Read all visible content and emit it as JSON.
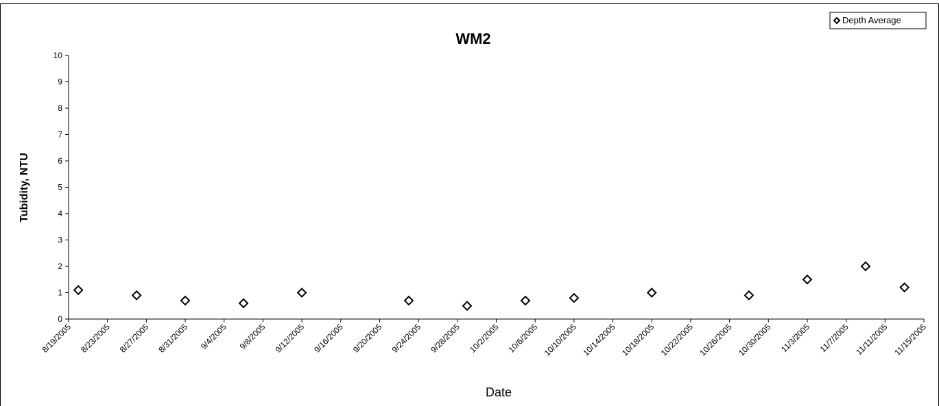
{
  "chart_data": {
    "type": "scatter",
    "title": "WM2",
    "x_label": "Date",
    "y_label": "Tubidity, NTU",
    "series": [
      {
        "name": "Depth Average",
        "color": "#000000",
        "x": [
          "2005-08-20",
          "2005-08-26",
          "2005-08-31",
          "2005-09-06",
          "2005-09-12",
          "2005-09-23",
          "2005-09-29",
          "2005-10-05",
          "2005-10-10",
          "2005-10-18",
          "2005-10-28",
          "2005-11-03",
          "2005-11-09",
          "2005-11-13"
        ],
        "values": [
          1.1,
          0.9,
          0.7,
          0.6,
          1.0,
          0.7,
          0.5,
          0.7,
          0.8,
          1.0,
          0.9,
          1.5,
          2.0,
          1.2
        ]
      }
    ],
    "xlim": [
      "2005-08-19",
      "2005-11-15"
    ],
    "xticks": [
      {
        "value": "2005-08-19",
        "label": "8/19/2005"
      },
      {
        "value": "2005-08-23",
        "label": "8/23/2005"
      },
      {
        "value": "2005-08-27",
        "label": "8/27/2005"
      },
      {
        "value": "2005-08-31",
        "label": "8/31/2005"
      },
      {
        "value": "2005-09-04",
        "label": "9/4/2005"
      },
      {
        "value": "2005-09-08",
        "label": "9/8/2005"
      },
      {
        "value": "2005-09-12",
        "label": "9/12/2005"
      },
      {
        "value": "2005-09-16",
        "label": "9/16/2005"
      },
      {
        "value": "2005-09-20",
        "label": "9/20/2005"
      },
      {
        "value": "2005-09-24",
        "label": "9/24/2005"
      },
      {
        "value": "2005-09-28",
        "label": "9/28/2005"
      },
      {
        "value": "2005-10-02",
        "label": "10/2/2005"
      },
      {
        "value": "2005-10-06",
        "label": "10/6/2005"
      },
      {
        "value": "2005-10-10",
        "label": "10/10/2005"
      },
      {
        "value": "2005-10-14",
        "label": "10/14/2005"
      },
      {
        "value": "2005-10-18",
        "label": "10/18/2005"
      },
      {
        "value": "2005-10-22",
        "label": "10/22/2005"
      },
      {
        "value": "2005-10-26",
        "label": "10/26/2005"
      },
      {
        "value": "2005-10-30",
        "label": "10/30/2005"
      },
      {
        "value": "2005-11-03",
        "label": "11/3/2005"
      },
      {
        "value": "2005-11-07",
        "label": "11/7/2005"
      },
      {
        "value": "2005-11-11",
        "label": "11/11/2005"
      },
      {
        "value": "2005-11-15",
        "label": "11/15/2005"
      }
    ],
    "ylim": [
      0,
      10
    ],
    "yticks": [
      0,
      1,
      2,
      3,
      4,
      5,
      6,
      7,
      8,
      9,
      10
    ],
    "grid": false,
    "legend": "top-right"
  }
}
